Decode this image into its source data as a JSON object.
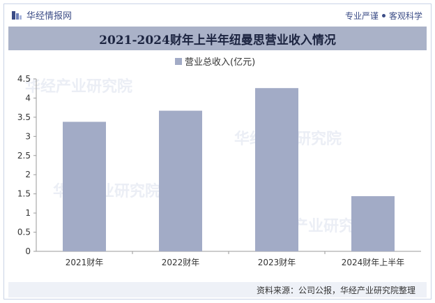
{
  "header": {
    "brand_name": "华经情报网",
    "slogan_left": "专业严谨",
    "slogan_right": "客观科学"
  },
  "title": "2021-2024财年上半年纽曼思营业收入情况",
  "footer": {
    "source": "资料来源：公司公报，华经产业研究院整理"
  },
  "watermark": "华经产业研究院",
  "colors": {
    "bar": "#a2abc6",
    "brand": "#3b4c86",
    "titlebar": "#aab2c8"
  },
  "chart_data": {
    "type": "bar",
    "categories": [
      "2021财年",
      "2022财年",
      "2023财年",
      "2024财年上半年"
    ],
    "series": [
      {
        "name": "营业总收入(亿元)",
        "values": [
          3.38,
          3.67,
          4.26,
          1.44
        ]
      }
    ],
    "ylim": [
      0,
      4.5
    ],
    "yticks": [
      "0",
      "0.5",
      "1",
      "1.5",
      "2",
      "2.5",
      "3",
      "3.5",
      "4",
      "4.5"
    ],
    "legend_position": "top-center",
    "grid": false
  }
}
